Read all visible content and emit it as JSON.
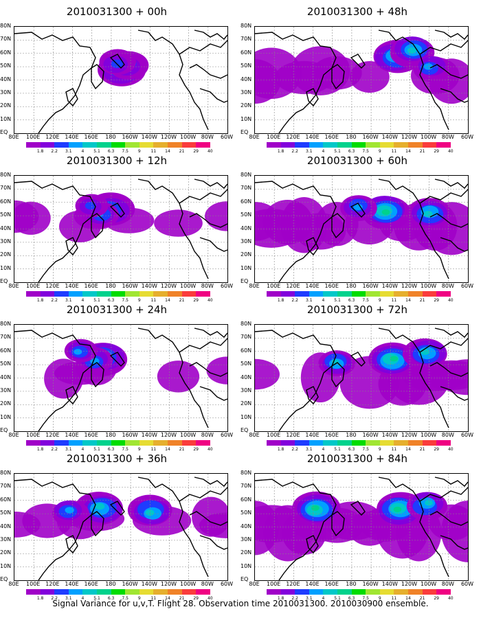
{
  "caption": "Signal Variance for u,v,T. Flight 28. Observation time 2010031300. 2010030900 ensemble.",
  "lat_labels": [
    "80N",
    "70N",
    "60N",
    "50N",
    "40N",
    "30N",
    "20N",
    "10N",
    "EQ"
  ],
  "lon_labels": [
    "80E",
    "100E",
    "120E",
    "140E",
    "160E",
    "180",
    "160W",
    "140W",
    "120W",
    "100W",
    "80W",
    "60W"
  ],
  "colorbar": {
    "levels": [
      "1.8",
      "2.2",
      "3.1",
      "4",
      "5.1",
      "6.3",
      "7.5",
      "9",
      "11",
      "14",
      "21",
      "29",
      "40"
    ],
    "colors": [
      "#a000c8",
      "#8200dc",
      "#1e3cff",
      "#00a0ff",
      "#00c8c8",
      "#00d28c",
      "#00dc00",
      "#a0e632",
      "#e6dc32",
      "#e6af2d",
      "#f08228",
      "#fa3c3c",
      "#f00082"
    ]
  },
  "panels": [
    {
      "title": "2010031300 + 00h",
      "spread": 0.15,
      "intensity": 0.35,
      "blobs": [
        [
          155,
          62,
          0.9
        ],
        [
          165,
          55,
          0.7
        ],
        [
          150,
          52,
          0.6
        ]
      ]
    },
    {
      "title": "2010031300 + 12h",
      "spread": 0.35,
      "intensity": 0.45,
      "blobs": [
        [
          140,
          50,
          0.9
        ],
        [
          125,
          55,
          0.6
        ],
        [
          110,
          45,
          0.5
        ]
      ]
    },
    {
      "title": "2010031300 + 24h",
      "spread": 0.45,
      "intensity": 0.5,
      "blobs": [
        [
          130,
          48,
          0.9
        ],
        [
          115,
          52,
          0.6
        ],
        [
          95,
          40,
          0.5
        ]
      ]
    },
    {
      "title": "2010031300 + 36h",
      "spread": 0.6,
      "intensity": 0.6,
      "blobs": [
        [
          125,
          50,
          0.9
        ],
        [
          200,
          55,
          0.8
        ],
        [
          80,
          55,
          0.6
        ]
      ]
    },
    {
      "title": "2010031300 + 48h",
      "spread": 0.65,
      "intensity": 0.6,
      "blobs": [
        [
          205,
          45,
          0.9
        ],
        [
          230,
          35,
          0.8
        ],
        [
          255,
          60,
          0.6
        ]
      ]
    },
    {
      "title": "2010031300 + 60h",
      "spread": 0.75,
      "intensity": 0.65,
      "blobs": [
        [
          190,
          52,
          0.9
        ],
        [
          255,
          55,
          0.8
        ],
        [
          150,
          45,
          0.6
        ]
      ]
    },
    {
      "title": "2010031300 + 72h",
      "spread": 0.8,
      "intensity": 0.7,
      "blobs": [
        [
          200,
          50,
          0.9
        ],
        [
          250,
          40,
          0.8
        ],
        [
          120,
          55,
          0.6
        ]
      ]
    },
    {
      "title": "2010031300 + 84h",
      "spread": 0.9,
      "intensity": 0.8,
      "blobs": [
        [
          90,
          52,
          0.9
        ],
        [
          210,
          52,
          0.9
        ],
        [
          250,
          45,
          0.7
        ]
      ]
    }
  ]
}
